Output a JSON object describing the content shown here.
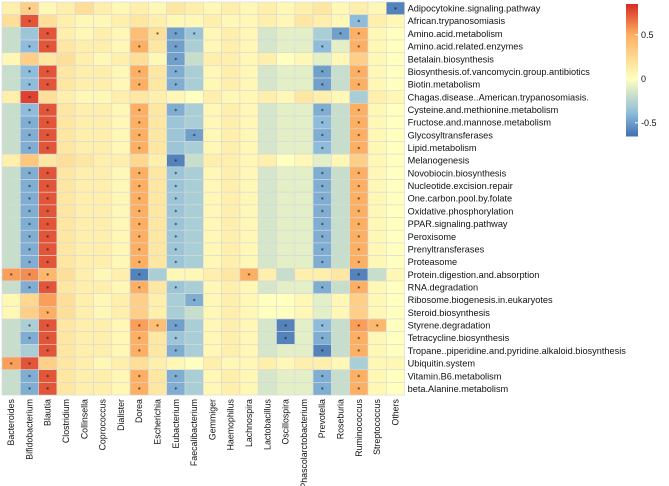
{
  "chart_data": {
    "type": "heatmap",
    "title": "",
    "columns": [
      "Bacteroides",
      "Bifidobacterium",
      "Blautia",
      "Clostridium",
      "Collinsella",
      "Coprococcus",
      "Dialister",
      "Dorea",
      "Escherichia",
      "Eubacterium",
      "Faecalibacterium",
      "Gemmiger",
      "Haemophilus",
      "Lachnospira",
      "Lactobacillus",
      "Oscillospira",
      "Phascolarctobacterium",
      "Prevotella",
      "Roseburia",
      "Ruminococcus",
      "Streptococcus",
      "Others"
    ],
    "rows": [
      "Adipocytokine.signaling.pathway",
      "African.trypanosomiasis",
      "Amino.acid.metabolism",
      "Amino.acid.related.enzymes",
      "Betalain.biosynthesis",
      "Biosynthesis.of.vancomycin.group.antibiotics",
      "Biotin.metabolism",
      "Chagas.disease..American.trypanosomiasis.",
      "Cysteine.and.methionine.metabolism",
      "Fructose.and.mannose.metabolism",
      "Glycosyltransferases",
      "Lipid.metabolism",
      "Melanogenesis",
      "Novobiocin.biosynthesis",
      "Nucleotide.excision.repair",
      "One.carbon.pool.by.folate",
      "Oxidative.phosphorylation",
      "PPAR.signaling.pathway",
      "Peroxisome",
      "Prenyltransferases",
      "Proteasome",
      "Protein.digestion.and.absorption",
      "RNA.degradation",
      "Ribosome.biogenesis.in.eukaryotes",
      "Steroid.biosynthesis",
      "Styrene.degradation",
      "Tetracycline.biosynthesis",
      "Tropane..piperidine.and.pyridine.alkaloid.biosynthesis",
      "Ubiquitin.system",
      "Vitamin.B6.metabolism",
      "beta.Alanine.metabolism"
    ],
    "values": [
      [
        0.1,
        0.3,
        0.05,
        0.1,
        0.2,
        0.1,
        0.05,
        0.1,
        0.05,
        0.15,
        0.1,
        0.05,
        0.1,
        0.05,
        0.1,
        0.05,
        0.1,
        0.15,
        0.05,
        0.1,
        0.05,
        -0.6
      ],
      [
        0.2,
        0.75,
        0.2,
        0.1,
        0.05,
        0.05,
        0.1,
        0.15,
        0.1,
        0.05,
        0.05,
        0.1,
        0.05,
        0.05,
        0.1,
        0.05,
        0.15,
        0.1,
        0.05,
        -0.4,
        0.1,
        0.05
      ],
      [
        -0.2,
        -0.35,
        0.75,
        0.1,
        0.05,
        0.1,
        0.05,
        0.4,
        0.2,
        -0.5,
        -0.35,
        0.05,
        0.1,
        0.05,
        -0.15,
        -0.1,
        -0.1,
        -0.3,
        -0.5,
        0.5,
        0.05,
        0.0
      ],
      [
        -0.2,
        -0.4,
        0.75,
        0.15,
        0.1,
        0.1,
        0.05,
        0.5,
        0.15,
        -0.5,
        -0.3,
        0.05,
        0.1,
        0.05,
        -0.15,
        -0.1,
        -0.1,
        -0.4,
        -0.1,
        0.5,
        0.05,
        0.0
      ],
      [
        0.05,
        0.3,
        0.15,
        0.2,
        0.1,
        0.05,
        0.1,
        0.2,
        0.05,
        -0.5,
        -0.2,
        0.1,
        0.1,
        0.05,
        0.1,
        0.0,
        0.05,
        -0.1,
        0.05,
        0.3,
        0.05,
        0.0
      ],
      [
        -0.2,
        -0.4,
        0.75,
        0.15,
        0.1,
        0.1,
        0.05,
        0.5,
        0.15,
        -0.45,
        -0.3,
        0.05,
        0.1,
        0.05,
        -0.15,
        -0.1,
        -0.1,
        -0.5,
        -0.2,
        0.5,
        0.05,
        0.0
      ],
      [
        -0.2,
        -0.4,
        0.75,
        0.15,
        0.1,
        0.1,
        0.05,
        0.5,
        0.15,
        -0.45,
        -0.3,
        0.05,
        0.1,
        0.05,
        -0.15,
        -0.1,
        -0.1,
        -0.5,
        -0.2,
        0.5,
        0.05,
        0.0
      ],
      [
        0.1,
        0.8,
        0.2,
        0.1,
        0.05,
        0.05,
        0.1,
        0.15,
        0.1,
        0.05,
        0.0,
        0.1,
        0.05,
        0.05,
        0.1,
        0.05,
        0.15,
        0.1,
        0.05,
        -0.3,
        0.1,
        0.05
      ],
      [
        -0.2,
        -0.4,
        0.75,
        0.15,
        0.1,
        0.1,
        0.05,
        0.5,
        0.15,
        -0.45,
        -0.3,
        0.05,
        0.1,
        0.05,
        -0.15,
        -0.1,
        -0.1,
        -0.45,
        -0.2,
        0.5,
        0.05,
        0.0
      ],
      [
        -0.2,
        -0.45,
        0.75,
        0.15,
        0.1,
        0.1,
        0.05,
        0.5,
        0.15,
        -0.35,
        -0.3,
        0.05,
        0.1,
        0.05,
        -0.15,
        -0.1,
        -0.1,
        -0.4,
        -0.2,
        0.5,
        0.05,
        0.0
      ],
      [
        -0.2,
        -0.45,
        0.75,
        0.15,
        0.1,
        0.1,
        0.05,
        0.5,
        0.15,
        -0.35,
        -0.5,
        0.05,
        0.1,
        0.05,
        -0.15,
        -0.1,
        -0.1,
        -0.45,
        -0.2,
        0.5,
        0.05,
        0.0
      ],
      [
        -0.2,
        -0.45,
        0.75,
        0.15,
        0.1,
        0.1,
        0.05,
        0.5,
        0.15,
        -0.35,
        -0.3,
        0.05,
        0.1,
        0.05,
        -0.15,
        -0.1,
        -0.1,
        -0.4,
        -0.2,
        0.5,
        0.05,
        0.0
      ],
      [
        0.1,
        0.35,
        0.15,
        0.2,
        0.15,
        0.1,
        0.1,
        0.25,
        0.1,
        -0.6,
        -0.2,
        0.1,
        0.1,
        0.05,
        0.1,
        0.0,
        0.05,
        -0.1,
        0.05,
        0.3,
        0.05,
        0.0
      ],
      [
        -0.2,
        -0.45,
        0.75,
        0.15,
        0.1,
        0.1,
        0.05,
        0.5,
        0.15,
        -0.35,
        -0.3,
        0.05,
        0.1,
        0.05,
        -0.15,
        -0.1,
        -0.1,
        -0.45,
        -0.2,
        0.5,
        0.05,
        0.0
      ],
      [
        -0.2,
        -0.45,
        0.75,
        0.15,
        0.1,
        0.1,
        0.05,
        0.5,
        0.15,
        -0.35,
        -0.3,
        0.05,
        0.1,
        0.05,
        -0.15,
        -0.1,
        -0.1,
        -0.45,
        -0.2,
        0.5,
        0.05,
        0.0
      ],
      [
        -0.2,
        -0.45,
        0.75,
        0.15,
        0.1,
        0.1,
        0.05,
        0.5,
        0.15,
        -0.35,
        -0.3,
        0.05,
        0.1,
        0.05,
        -0.15,
        -0.1,
        -0.1,
        -0.45,
        -0.2,
        0.5,
        0.05,
        0.0
      ],
      [
        -0.2,
        -0.45,
        0.75,
        0.15,
        0.1,
        0.1,
        0.05,
        0.5,
        0.15,
        -0.35,
        -0.3,
        0.05,
        0.1,
        0.05,
        -0.15,
        -0.1,
        -0.1,
        -0.45,
        -0.2,
        0.5,
        0.05,
        0.0
      ],
      [
        -0.2,
        -0.45,
        0.75,
        0.15,
        0.1,
        0.1,
        0.05,
        0.5,
        0.15,
        -0.35,
        -0.3,
        0.05,
        0.1,
        0.05,
        -0.15,
        -0.1,
        -0.1,
        -0.45,
        -0.2,
        0.5,
        0.05,
        0.0
      ],
      [
        -0.2,
        -0.45,
        0.75,
        0.15,
        0.1,
        0.1,
        0.05,
        0.5,
        0.15,
        -0.35,
        -0.3,
        0.05,
        0.1,
        0.05,
        -0.15,
        -0.1,
        -0.1,
        -0.45,
        -0.2,
        0.5,
        0.05,
        0.0
      ],
      [
        -0.2,
        -0.45,
        0.75,
        0.15,
        0.1,
        0.1,
        0.05,
        0.5,
        0.15,
        -0.35,
        -0.3,
        0.05,
        0.1,
        0.05,
        -0.15,
        -0.1,
        -0.1,
        -0.45,
        -0.2,
        0.5,
        0.05,
        0.0
      ],
      [
        -0.2,
        -0.45,
        0.75,
        0.15,
        0.1,
        0.1,
        0.05,
        0.5,
        0.15,
        -0.35,
        -0.3,
        0.05,
        0.1,
        0.05,
        -0.15,
        -0.1,
        -0.1,
        -0.45,
        -0.2,
        0.5,
        0.05,
        0.0
      ],
      [
        0.55,
        0.6,
        0.45,
        0.2,
        0.1,
        0.05,
        0.1,
        -0.6,
        -0.3,
        0.05,
        0.05,
        0.1,
        0.15,
        0.5,
        0.1,
        -0.2,
        0.1,
        0.1,
        0.15,
        -0.6,
        -0.2,
        0.05
      ],
      [
        -0.2,
        -0.45,
        0.75,
        0.15,
        0.1,
        0.1,
        0.05,
        0.5,
        0.15,
        -0.35,
        -0.3,
        0.05,
        0.1,
        0.05,
        -0.15,
        -0.1,
        -0.1,
        -0.45,
        -0.2,
        0.5,
        0.05,
        0.0
      ],
      [
        0.05,
        0.25,
        0.55,
        0.2,
        0.1,
        0.05,
        0.1,
        0.3,
        0.1,
        -0.3,
        -0.45,
        0.05,
        0.1,
        0.05,
        0.0,
        0.0,
        0.05,
        -0.1,
        0.05,
        0.3,
        0.05,
        0.0
      ],
      [
        0.05,
        0.3,
        0.5,
        0.2,
        0.1,
        0.05,
        0.1,
        0.3,
        0.1,
        -0.3,
        -0.2,
        0.05,
        0.1,
        0.05,
        0.0,
        0.0,
        0.05,
        -0.1,
        0.05,
        0.3,
        0.05,
        0.0
      ],
      [
        -0.2,
        -0.3,
        0.75,
        0.15,
        0.1,
        0.1,
        0.05,
        0.55,
        0.4,
        -0.5,
        -0.3,
        0.05,
        0.1,
        0.05,
        -0.15,
        -0.6,
        -0.1,
        -0.4,
        -0.2,
        0.55,
        0.45,
        0.0
      ],
      [
        -0.2,
        -0.45,
        0.75,
        0.15,
        0.1,
        0.1,
        0.05,
        0.5,
        0.15,
        -0.35,
        -0.3,
        0.05,
        0.1,
        0.05,
        -0.15,
        -0.6,
        -0.1,
        -0.45,
        -0.2,
        0.5,
        0.05,
        0.0
      ],
      [
        -0.2,
        -0.3,
        0.75,
        0.15,
        0.1,
        0.1,
        0.05,
        0.5,
        0.15,
        -0.45,
        -0.3,
        0.05,
        0.1,
        0.05,
        -0.15,
        -0.1,
        -0.1,
        -0.6,
        -0.2,
        0.5,
        0.05,
        0.0
      ],
      [
        0.55,
        0.75,
        0.3,
        0.15,
        0.1,
        0.05,
        0.1,
        0.2,
        0.1,
        0.05,
        0.0,
        0.1,
        0.05,
        0.05,
        0.1,
        0.05,
        0.1,
        0.1,
        0.05,
        -0.3,
        0.05,
        0.05
      ],
      [
        -0.2,
        -0.45,
        0.75,
        0.15,
        0.1,
        0.1,
        0.05,
        0.5,
        0.15,
        -0.45,
        -0.3,
        0.05,
        0.1,
        0.05,
        -0.15,
        -0.1,
        -0.1,
        -0.45,
        -0.2,
        0.5,
        0.05,
        0.0
      ],
      [
        -0.2,
        -0.45,
        0.75,
        0.15,
        0.1,
        0.1,
        0.05,
        0.5,
        0.15,
        -0.45,
        -0.3,
        0.05,
        0.1,
        0.05,
        -0.15,
        -0.1,
        -0.1,
        -0.45,
        -0.2,
        0.5,
        0.05,
        0.0
      ]
    ],
    "significance_marker": "*",
    "significant_cells": [
      [
        0,
        21
      ],
      [
        0,
        1
      ],
      [
        1,
        1
      ],
      [
        1,
        19
      ],
      [
        2,
        2
      ],
      [
        2,
        8
      ],
      [
        2,
        9
      ],
      [
        2,
        10
      ],
      [
        2,
        18
      ],
      [
        2,
        19
      ],
      [
        3,
        1
      ],
      [
        3,
        2
      ],
      [
        3,
        7
      ],
      [
        3,
        9
      ],
      [
        3,
        17
      ],
      [
        3,
        19
      ],
      [
        4,
        9
      ],
      [
        5,
        1
      ],
      [
        5,
        2
      ],
      [
        5,
        7
      ],
      [
        5,
        9
      ],
      [
        5,
        17
      ],
      [
        5,
        19
      ],
      [
        6,
        1
      ],
      [
        6,
        2
      ],
      [
        6,
        7
      ],
      [
        6,
        9
      ],
      [
        6,
        17
      ],
      [
        6,
        19
      ],
      [
        7,
        1
      ],
      [
        8,
        1
      ],
      [
        8,
        2
      ],
      [
        8,
        7
      ],
      [
        8,
        9
      ],
      [
        8,
        17
      ],
      [
        8,
        19
      ],
      [
        9,
        1
      ],
      [
        9,
        2
      ],
      [
        9,
        7
      ],
      [
        9,
        17
      ],
      [
        9,
        19
      ],
      [
        10,
        1
      ],
      [
        10,
        2
      ],
      [
        10,
        7
      ],
      [
        10,
        10
      ],
      [
        10,
        17
      ],
      [
        10,
        19
      ],
      [
        11,
        1
      ],
      [
        11,
        2
      ],
      [
        11,
        7
      ],
      [
        11,
        17
      ],
      [
        11,
        19
      ],
      [
        12,
        9
      ],
      [
        13,
        1
      ],
      [
        13,
        2
      ],
      [
        13,
        7
      ],
      [
        13,
        9
      ],
      [
        13,
        17
      ],
      [
        13,
        19
      ],
      [
        14,
        1
      ],
      [
        14,
        2
      ],
      [
        14,
        7
      ],
      [
        14,
        9
      ],
      [
        14,
        17
      ],
      [
        14,
        19
      ],
      [
        15,
        1
      ],
      [
        15,
        2
      ],
      [
        15,
        7
      ],
      [
        15,
        9
      ],
      [
        15,
        17
      ],
      [
        15,
        19
      ],
      [
        16,
        1
      ],
      [
        16,
        2
      ],
      [
        16,
        7
      ],
      [
        16,
        9
      ],
      [
        16,
        17
      ],
      [
        16,
        19
      ],
      [
        17,
        1
      ],
      [
        17,
        2
      ],
      [
        17,
        7
      ],
      [
        17,
        9
      ],
      [
        17,
        17
      ],
      [
        17,
        19
      ],
      [
        18,
        1
      ],
      [
        18,
        2
      ],
      [
        18,
        7
      ],
      [
        18,
        9
      ],
      [
        18,
        17
      ],
      [
        18,
        19
      ],
      [
        19,
        1
      ],
      [
        19,
        2
      ],
      [
        19,
        7
      ],
      [
        19,
        9
      ],
      [
        19,
        17
      ],
      [
        19,
        19
      ],
      [
        20,
        1
      ],
      [
        20,
        2
      ],
      [
        20,
        7
      ],
      [
        20,
        9
      ],
      [
        20,
        17
      ],
      [
        20,
        19
      ],
      [
        21,
        0
      ],
      [
        21,
        1
      ],
      [
        21,
        2
      ],
      [
        21,
        7
      ],
      [
        21,
        13
      ],
      [
        21,
        19
      ],
      [
        22,
        1
      ],
      [
        22,
        2
      ],
      [
        22,
        7
      ],
      [
        22,
        9
      ],
      [
        22,
        17
      ],
      [
        22,
        19
      ],
      [
        23,
        10
      ],
      [
        24,
        2
      ],
      [
        25,
        1
      ],
      [
        25,
        2
      ],
      [
        25,
        7
      ],
      [
        25,
        8
      ],
      [
        25,
        9
      ],
      [
        25,
        15
      ],
      [
        25,
        17
      ],
      [
        25,
        19
      ],
      [
        25,
        20
      ],
      [
        26,
        1
      ],
      [
        26,
        2
      ],
      [
        26,
        7
      ],
      [
        26,
        9
      ],
      [
        26,
        15
      ],
      [
        26,
        17
      ],
      [
        26,
        19
      ],
      [
        27,
        2
      ],
      [
        27,
        7
      ],
      [
        27,
        9
      ],
      [
        27,
        17
      ],
      [
        27,
        19
      ],
      [
        28,
        0
      ],
      [
        28,
        1
      ],
      [
        29,
        1
      ],
      [
        29,
        2
      ],
      [
        29,
        7
      ],
      [
        29,
        9
      ],
      [
        29,
        17
      ],
      [
        29,
        19
      ],
      [
        30,
        1
      ],
      [
        30,
        2
      ],
      [
        30,
        7
      ],
      [
        30,
        9
      ],
      [
        30,
        17
      ],
      [
        30,
        19
      ]
    ],
    "colorscale": {
      "low": "#4575b4",
      "mid": "#ffffbf",
      "high": "#d73027",
      "range": [
        -0.65,
        0.85
      ]
    },
    "legend": {
      "placement": "top-right",
      "ticks": [
        0.5,
        0,
        -0.5
      ],
      "tick_labels": [
        "0.5",
        "0",
        "-0.5"
      ]
    }
  }
}
